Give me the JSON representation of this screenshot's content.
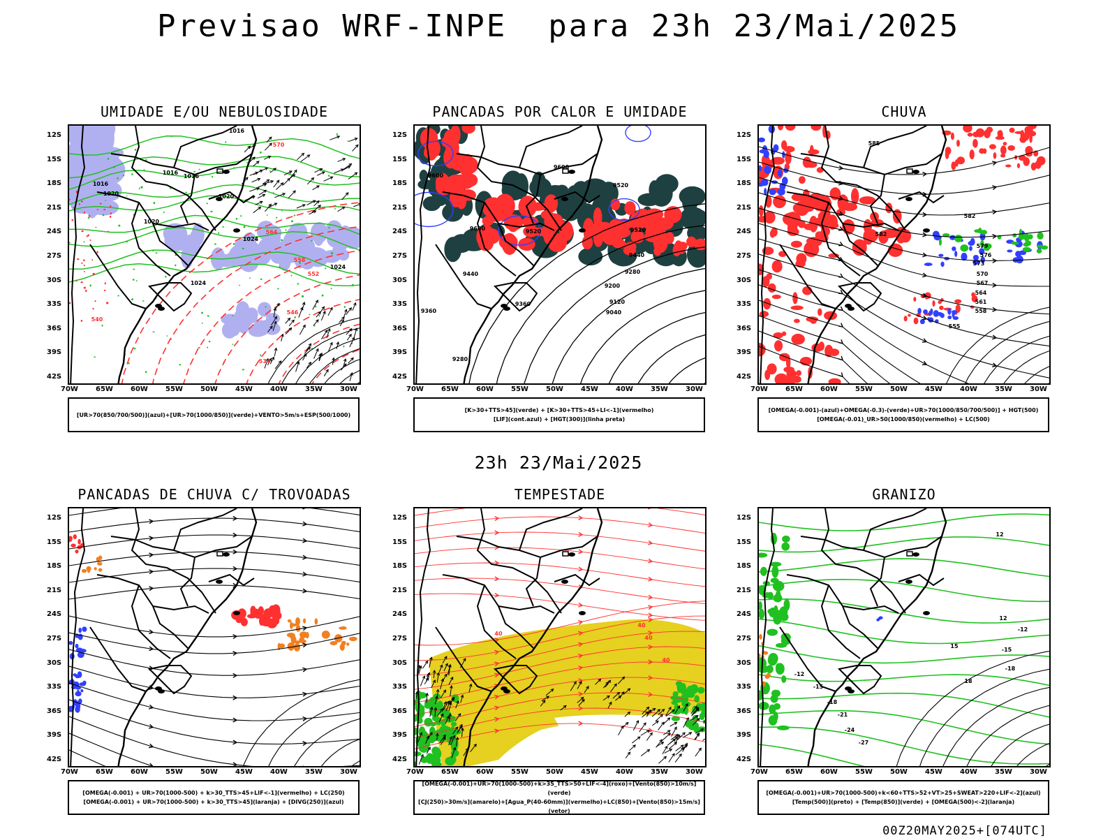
{
  "main_title": "Previsao WRF-INPE  para 23h 23/Mai/2025",
  "mid_title": "23h 23/Mai/2025",
  "footer": "00Z20MAY2025+[074UTC]",
  "axes": {
    "lat_ticks": [
      "12S",
      "15S",
      "18S",
      "21S",
      "24S",
      "27S",
      "30S",
      "33S",
      "36S",
      "39S",
      "42S"
    ],
    "lon_ticks": [
      "70W",
      "65W",
      "60W",
      "55W",
      "50W",
      "45W",
      "40W",
      "35W",
      "30W"
    ]
  },
  "colors": {
    "blue": "#3040ff",
    "green": "#20c020",
    "red": "#ff3030",
    "orange": "#f08020",
    "yellow": "#e6d020",
    "darkteal": "#1f4040",
    "lavender": "#b0b0f0",
    "black": "#000000"
  },
  "chart_data": [
    {
      "type": "map",
      "title": "UMIDADE E/OU NEBULOSIDADE",
      "legend": [
        "[UR>70(850/700/500)](azul)+[UR>70(1000/850)](verde)+VENTO>5m/s+ESP(500/1000)"
      ],
      "contour_labels": [
        "1016",
        "1016",
        "1016",
        "1016",
        "1020",
        "1020",
        "1020",
        "1024",
        "1024",
        "1024",
        "570",
        "564",
        "558",
        "552",
        "546",
        "540",
        "534"
      ]
    },
    {
      "type": "map",
      "title": "PANCADAS POR CALOR E UMIDADE",
      "legend": [
        "[K>30+TTS>45](verde) + [K>30+TTS>45+LI<-1](vermelho)",
        "[LIF](cont.azul) + [HGT(300)](linha preta)"
      ],
      "contour_labels": [
        "9600",
        "9600",
        "9600",
        "9520",
        "9520",
        "9520",
        "9440",
        "9440",
        "9360",
        "9360",
        "9280",
        "9200",
        "9120",
        "9040",
        "9280"
      ]
    },
    {
      "type": "map",
      "title": "CHUVA",
      "legend": [
        "[OMEGA(-0.001)-(azul)+OMEGA(-0.3)-(verde)+UR>70(1000/850/700/500)] + HGT(500)",
        "[OMEGA(-0.01)_UR>50(1000/850)(vermelho) + LC(500)"
      ],
      "contour_labels": [
        "585",
        "582",
        "582",
        "579",
        "576",
        "573",
        "570",
        "567",
        "564",
        "561",
        "558",
        "555"
      ]
    },
    {
      "type": "map",
      "title": "PANCADAS DE CHUVA C/ TROVOADAS",
      "legend": [
        "[OMEGA(-0.001) + UR>70(1000-500) + k>30_TTS>45+LIF<-1](vermelho) + LC(250)",
        "[OMEGA(-0.001) + UR>70(1000-500) + k>30_TTS>45](laranja) + [DIVG(250)](azul)"
      ],
      "contour_labels": []
    },
    {
      "type": "map",
      "title": "TEMPESTADE",
      "legend": [
        "[OMEGA(-0.001)+UR>70(1000-500)+k>35_TTS>50+LIF<-4](roxo)+[Vento(850)>10m/s](verde)",
        "[CJ(250)>30m/s](amarelo)+[Agua_P(40-60mm)](vermelho)+LC(850)+[Vento(850)>15m/s](vetor)"
      ],
      "contour_labels": [
        "40",
        "40",
        "40",
        "40"
      ]
    },
    {
      "type": "map",
      "title": "GRANIZO",
      "legend": [
        "[OMEGA(-0.001)+UR>70(1000-500)+k<60+TTS>52+VT>25+SWEAT>220+LIF<-2](azul)",
        "[Temp(500)](preto) + [Temp(850)](verde) + [OMEGA(500)<-2](laranja)"
      ],
      "contour_labels": [
        "-12",
        "-15",
        "-18",
        "-21",
        "-24",
        "-27",
        "12",
        "12",
        "15",
        "18",
        "-12",
        "-15",
        "-18"
      ]
    }
  ]
}
